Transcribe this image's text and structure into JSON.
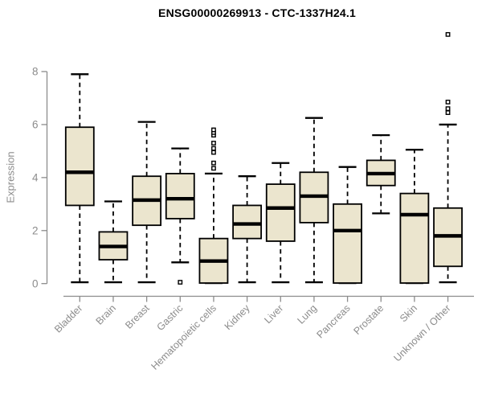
{
  "title": "ENSG00000269913 - CTC-1337H24.1",
  "chart_data": {
    "type": "boxplot",
    "title": "ENSG00000269913 - CTC-1337H24.1",
    "xlabel": "",
    "ylabel": "Expression",
    "ylim": [
      0,
      8
    ],
    "yticks": [
      0,
      2,
      4,
      6,
      8
    ],
    "grid": false,
    "legend": false,
    "boxes": [
      {
        "label": "Bladder",
        "whisker_low": 0.05,
        "q1": 2.95,
        "median": 4.2,
        "q3": 5.9,
        "whisker_high": 7.9,
        "outliers": []
      },
      {
        "label": "Brain",
        "whisker_low": 0.05,
        "q1": 0.9,
        "median": 1.4,
        "q3": 1.95,
        "whisker_high": 3.1,
        "outliers": []
      },
      {
        "label": "Breast",
        "whisker_low": 0.05,
        "q1": 2.2,
        "median": 3.15,
        "q3": 4.05,
        "whisker_high": 6.1,
        "outliers": []
      },
      {
        "label": "Gastric",
        "whisker_low": 0.8,
        "q1": 2.45,
        "median": 3.2,
        "q3": 4.15,
        "whisker_high": 5.1,
        "outliers": [
          0.05
        ]
      },
      {
        "label": "Hematopoietic cells",
        "whisker_low": 0.02,
        "q1": 0.02,
        "median": 0.85,
        "q3": 1.7,
        "whisker_high": 4.15,
        "outliers": [
          4.35,
          4.55,
          4.95,
          5.1,
          5.3,
          5.6,
          5.7,
          5.8
        ]
      },
      {
        "label": "Kidney",
        "whisker_low": 0.05,
        "q1": 1.7,
        "median": 2.25,
        "q3": 2.95,
        "whisker_high": 4.05,
        "outliers": []
      },
      {
        "label": "Liver",
        "whisker_low": 0.05,
        "q1": 1.6,
        "median": 2.85,
        "q3": 3.75,
        "whisker_high": 4.55,
        "outliers": []
      },
      {
        "label": "Lung",
        "whisker_low": 0.05,
        "q1": 2.3,
        "median": 3.3,
        "q3": 4.2,
        "whisker_high": 6.25,
        "outliers": []
      },
      {
        "label": "Pancreas",
        "whisker_low": 0.02,
        "q1": 0.02,
        "median": 2.0,
        "q3": 3.0,
        "whisker_high": 4.4,
        "outliers": []
      },
      {
        "label": "Prostate",
        "whisker_low": 2.65,
        "q1": 3.7,
        "median": 4.15,
        "q3": 4.65,
        "whisker_high": 5.6,
        "outliers": []
      },
      {
        "label": "Skin",
        "whisker_low": 0.02,
        "q1": 0.02,
        "median": 2.6,
        "q3": 3.4,
        "whisker_high": 5.05,
        "outliers": []
      },
      {
        "label": "Unknown / Other",
        "whisker_low": 0.05,
        "q1": 0.65,
        "median": 1.8,
        "q3": 2.85,
        "whisker_high": 6.0,
        "outliers": [
          6.45,
          6.6,
          6.85,
          9.4
        ]
      }
    ],
    "colors": {
      "box_fill": "#EBE5CE",
      "box_stroke": "#000000",
      "median": "#000000",
      "whisker": "#000000",
      "outlier_stroke": "#000000",
      "axis": "#8C8C8C",
      "tick_label": "#8C8C8C",
      "title": "#000000",
      "background": "#FFFFFF"
    }
  }
}
